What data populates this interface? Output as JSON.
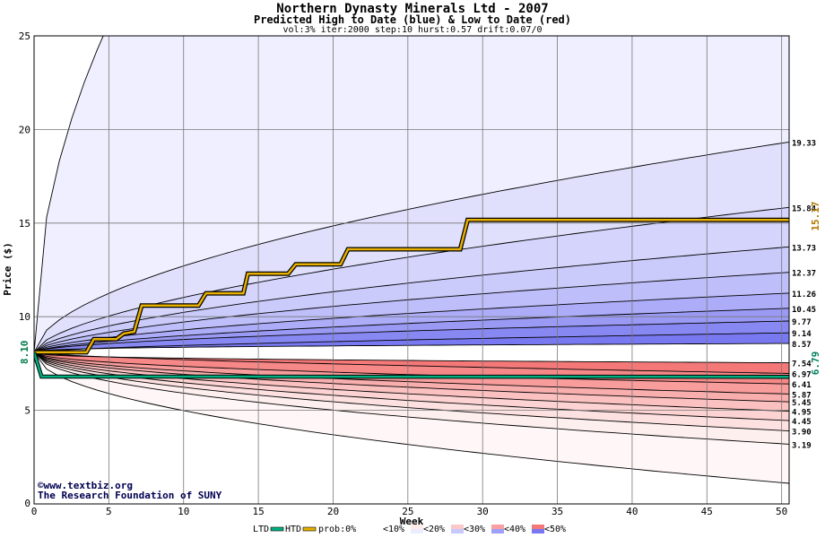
{
  "chart_data": {
    "type": "area",
    "title": "Northern Dynasty Minerals Ltd - 2007",
    "subtitle": "Predicted High to Date (blue) &  Low to Date (red)",
    "params": "vol:3% iter:2000 step:10 hurst:0.57 drift:0.07/0",
    "xlabel": "Week",
    "ylabel": "Price ($)",
    "xlim": [
      0,
      50.5
    ],
    "ylim": [
      0,
      25
    ],
    "xticks": [
      0,
      5,
      10,
      15,
      20,
      25,
      30,
      35,
      40,
      45,
      50
    ],
    "yticks": [
      5,
      10,
      15,
      20,
      25
    ],
    "grid": true,
    "start_price": 8.1,
    "start_label": "8.10",
    "htd_value_label": "15.17",
    "ltd_value_label": "6.79",
    "upper_bands": [
      {
        "end": 8.57,
        "label": "8.57",
        "p": 0.35
      },
      {
        "end": 9.14,
        "label": "9.14",
        "p": 0.65
      },
      {
        "end": 9.77,
        "label": "9.77",
        "p": 0.55
      },
      {
        "end": 10.45,
        "label": "10.45",
        "p": 0.6
      },
      {
        "end": 11.26,
        "label": "11.26",
        "p": 0.6
      },
      {
        "end": 12.37,
        "label": "12.37",
        "p": 0.6
      },
      {
        "end": 13.73,
        "label": "13.73",
        "p": 0.6
      },
      {
        "end": 15.84,
        "label": "15.84",
        "p": 0.6
      },
      {
        "end": 19.33,
        "label": "19.33",
        "p": 0.55
      },
      {
        "end": 64,
        "label": "",
        "p": 0.5
      }
    ],
    "upper_fills": [
      "#7878f0",
      "#8888f2",
      "#9a9af5",
      "#acacf8",
      "#bebefa",
      "#cacafb",
      "#d4d4fc",
      "#e0e0fc",
      "#efefff"
    ],
    "lower_bands": [
      {
        "end": 7.54,
        "label": "7.54",
        "p": 0.35
      },
      {
        "end": 6.97,
        "label": "6.97",
        "p": 0.65
      },
      {
        "end": 6.41,
        "label": "6.41",
        "p": 0.5
      },
      {
        "end": 5.87,
        "label": "5.87",
        "p": 0.5
      },
      {
        "end": 5.45,
        "label": "5.45",
        "p": 0.5
      },
      {
        "end": 4.95,
        "label": "4.95",
        "p": 0.5
      },
      {
        "end": 4.45,
        "label": "4.45",
        "p": 0.5
      },
      {
        "end": 3.9,
        "label": "3.90",
        "p": 0.5
      },
      {
        "end": 3.19,
        "label": "3.19",
        "p": 0.5
      },
      {
        "end": 1.1,
        "label": "",
        "p": 0.5
      }
    ],
    "lower_fills": [
      "#f47878",
      "#f68888",
      "#f89c9c",
      "#f9aeae",
      "#fbc0c0",
      "#fcd2d2",
      "#fde0e0",
      "#feefef",
      "#fff7f7"
    ],
    "center_band_fill": "#ffffff",
    "htd_path": [
      [
        0,
        8.1
      ],
      [
        3.5,
        8.1
      ],
      [
        4,
        8.8
      ],
      [
        5.5,
        8.8
      ],
      [
        6,
        9.1
      ],
      [
        6.7,
        9.2
      ],
      [
        7.2,
        10.6
      ],
      [
        11,
        10.6
      ],
      [
        11.5,
        11.25
      ],
      [
        14,
        11.25
      ],
      [
        14.3,
        12.3
      ],
      [
        17,
        12.3
      ],
      [
        17.5,
        12.8
      ],
      [
        20.5,
        12.8
      ],
      [
        21,
        13.6
      ],
      [
        28.5,
        13.6
      ],
      [
        29,
        15.17
      ],
      [
        50.5,
        15.17
      ]
    ],
    "ltd_path": [
      [
        0,
        8.1
      ],
      [
        0.5,
        6.8
      ],
      [
        50.5,
        6.79
      ]
    ],
    "htd_color": "#e8b000",
    "ltd_color": "#00b080",
    "legend": {
      "ltd": "LTD",
      "htd": "HTD",
      "prob_prefix": "prob:0%",
      "items": [
        {
          "label": "<10%",
          "colors": [
            "#ffffff",
            "#ffffff"
          ]
        },
        {
          "label": "<20%",
          "colors": [
            "#feecec",
            "#ececfe"
          ]
        },
        {
          "label": "<30%",
          "colors": [
            "#fbc8c8",
            "#c8c8fb"
          ]
        },
        {
          "label": "<40%",
          "colors": [
            "#f8a0a0",
            "#a0a0f8"
          ]
        },
        {
          "label": "<50%",
          "colors": [
            "#f47878",
            "#7878f4"
          ]
        }
      ]
    },
    "watermark": [
      "©www.textbiz.org",
      "The Research Foundation of SUNY"
    ]
  }
}
